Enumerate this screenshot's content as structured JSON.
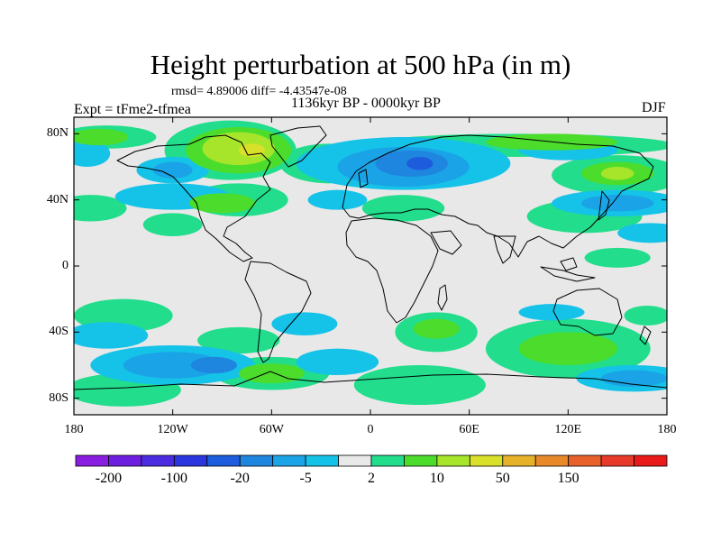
{
  "header": {
    "title": "Height perturbation at 500 hPa (in m)",
    "stats": "rmsd= 4.89006 diff= -4.43547e-08",
    "period": "1136kyr BP - 0000kyr BP",
    "experiment": "Expt = tFme2-tfmea",
    "season": "DJF"
  },
  "chart_data": {
    "type": "heatmap",
    "variable": "Height perturbation at 500 hPa",
    "units": "m",
    "season": "DJF",
    "xlim": [
      -180,
      180
    ],
    "ylim": [
      -90,
      90
    ],
    "lon_ticks": [
      {
        "value": -180,
        "label": "180"
      },
      {
        "value": -120,
        "label": "120W"
      },
      {
        "value": -60,
        "label": "60W"
      },
      {
        "value": 0,
        "label": "0"
      },
      {
        "value": 60,
        "label": "60E"
      },
      {
        "value": 120,
        "label": "120E"
      },
      {
        "value": 180,
        "label": "180"
      }
    ],
    "lat_ticks": [
      {
        "value": 80,
        "label": "80N"
      },
      {
        "value": 40,
        "label": "40N"
      },
      {
        "value": 0,
        "label": "0"
      },
      {
        "value": -40,
        "label": "40S"
      },
      {
        "value": -80,
        "label": "80S"
      }
    ],
    "colorbar": {
      "colors": [
        "#8a1ee0",
        "#6d1fe0",
        "#4b2ce0",
        "#2b36de",
        "#1d5cdc",
        "#1f86e0",
        "#1aa3e6",
        "#15c2e8",
        "#e8e8e8",
        "#22dd8c",
        "#4cdc2c",
        "#a6e52a",
        "#d9e02a",
        "#e6b22a",
        "#e88a2a",
        "#e8602a",
        "#e83a2a",
        "#e81a1a"
      ],
      "labels": [
        "-200",
        "-100",
        "-20",
        "-5",
        "2",
        "10",
        "50",
        "150"
      ]
    },
    "regions": [
      {
        "level": 1,
        "lon": -160,
        "lat": 78,
        "rlon": 30,
        "rlat": 7
      },
      {
        "level": 1,
        "lon": -85,
        "lat": 70,
        "rlon": 40,
        "rlat": 18
      },
      {
        "level": 1,
        "lon": -170,
        "lat": 35,
        "rlon": 22,
        "rlat": 8
      },
      {
        "level": 1,
        "lon": -25,
        "lat": 62,
        "rlon": 30,
        "rlat": 12
      },
      {
        "level": 1,
        "lon": 150,
        "lat": 55,
        "rlon": 40,
        "rlat": 12
      },
      {
        "level": 1,
        "lon": 90,
        "lat": 73,
        "rlon": 95,
        "rlat": 7
      },
      {
        "level": 1,
        "lon": -80,
        "lat": 40,
        "rlon": 30,
        "rlat": 10
      },
      {
        "level": 1,
        "lon": -120,
        "lat": 25,
        "rlon": 18,
        "rlat": 7
      },
      {
        "level": 1,
        "lon": 20,
        "lat": 35,
        "rlon": 25,
        "rlat": 8
      },
      {
        "level": 1,
        "lon": 130,
        "lat": 30,
        "rlon": 35,
        "rlat": 10
      },
      {
        "level": 1,
        "lon": 150,
        "lat": 5,
        "rlon": 20,
        "rlat": 6
      },
      {
        "level": 1,
        "lon": -150,
        "lat": -30,
        "rlon": 30,
        "rlat": 10
      },
      {
        "level": 1,
        "lon": -80,
        "lat": -45,
        "rlon": 25,
        "rlat": 8
      },
      {
        "level": 1,
        "lon": 40,
        "lat": -40,
        "rlon": 25,
        "rlat": 12
      },
      {
        "level": 1,
        "lon": 120,
        "lat": -50,
        "rlon": 50,
        "rlat": 18
      },
      {
        "level": 1,
        "lon": -150,
        "lat": -75,
        "rlon": 35,
        "rlat": 10
      },
      {
        "level": 1,
        "lon": 30,
        "lat": -72,
        "rlon": 40,
        "rlat": 12
      },
      {
        "level": 1,
        "lon": -60,
        "lat": -65,
        "rlon": 35,
        "rlat": 10
      },
      {
        "level": 1,
        "lon": 168,
        "lat": -30,
        "rlon": 14,
        "rlat": 6
      },
      {
        "level": 2,
        "lon": -80,
        "lat": 70,
        "rlon": 32,
        "rlat": 14
      },
      {
        "level": 2,
        "lon": 150,
        "lat": 56,
        "rlon": 22,
        "rlat": 7
      },
      {
        "level": 2,
        "lon": -165,
        "lat": 78,
        "rlon": 18,
        "rlat": 5
      },
      {
        "level": 2,
        "lon": 110,
        "lat": 75,
        "rlon": 40,
        "rlat": 5
      },
      {
        "level": 2,
        "lon": -90,
        "lat": 38,
        "rlon": 20,
        "rlat": 6
      },
      {
        "level": 2,
        "lon": 40,
        "lat": -38,
        "rlon": 14,
        "rlat": 6
      },
      {
        "level": 2,
        "lon": 120,
        "lat": -50,
        "rlon": 30,
        "rlat": 10
      },
      {
        "level": 2,
        "lon": -60,
        "lat": -65,
        "rlon": 20,
        "rlat": 6
      },
      {
        "level": 3,
        "lon": -80,
        "lat": 71,
        "rlon": 22,
        "rlat": 10
      },
      {
        "level": 3,
        "lon": -70,
        "lat": 71,
        "rlon": 12,
        "rlat": 6
      },
      {
        "level": 3,
        "lon": 150,
        "lat": 56,
        "rlon": 10,
        "rlat": 4
      },
      {
        "level": 4,
        "lon": -72,
        "lat": 70,
        "rlon": 8,
        "rlat": 4
      },
      {
        "level": -1,
        "lon": 20,
        "lat": 62,
        "rlon": 65,
        "rlat": 16
      },
      {
        "level": -1,
        "lon": 120,
        "lat": 70,
        "rlon": 30,
        "rlat": 6
      },
      {
        "level": -1,
        "lon": -120,
        "lat": 58,
        "rlon": 22,
        "rlat": 8
      },
      {
        "level": -1,
        "lon": -172,
        "lat": 68,
        "rlon": 14,
        "rlat": 8
      },
      {
        "level": -1,
        "lon": 150,
        "lat": 38,
        "rlon": 40,
        "rlat": 8
      },
      {
        "level": -1,
        "lon": -120,
        "lat": 42,
        "rlon": 35,
        "rlat": 8
      },
      {
        "level": -1,
        "lon": 170,
        "lat": 20,
        "rlon": 20,
        "rlat": 6
      },
      {
        "level": -1,
        "lon": -120,
        "lat": -60,
        "rlon": 50,
        "rlat": 12
      },
      {
        "level": -1,
        "lon": 160,
        "lat": -68,
        "rlon": 35,
        "rlat": 8
      },
      {
        "level": -1,
        "lon": -20,
        "lat": -58,
        "rlon": 25,
        "rlat": 8
      },
      {
        "level": -1,
        "lon": -160,
        "lat": -42,
        "rlon": 25,
        "rlat": 8
      },
      {
        "level": -1,
        "lon": -40,
        "lat": -35,
        "rlon": 20,
        "rlat": 7
      },
      {
        "level": -1,
        "lon": 110,
        "lat": -28,
        "rlon": 20,
        "rlat": 5
      },
      {
        "level": -1,
        "lon": -20,
        "lat": 40,
        "rlon": 18,
        "rlat": 6
      },
      {
        "level": -2,
        "lon": 20,
        "lat": 60,
        "rlon": 40,
        "rlat": 12
      },
      {
        "level": -2,
        "lon": -120,
        "lat": 58,
        "rlon": 12,
        "rlat": 5
      },
      {
        "level": -2,
        "lon": -120,
        "lat": -60,
        "rlon": 30,
        "rlat": 8
      },
      {
        "level": -2,
        "lon": 160,
        "lat": -68,
        "rlon": 20,
        "rlat": 5
      },
      {
        "level": -2,
        "lon": 150,
        "lat": 38,
        "rlon": 22,
        "rlat": 5
      },
      {
        "level": -3,
        "lon": 25,
        "lat": 62,
        "rlon": 22,
        "rlat": 8
      },
      {
        "level": -3,
        "lon": -95,
        "lat": -60,
        "rlon": 14,
        "rlat": 5
      },
      {
        "level": -4,
        "lon": 30,
        "lat": 62,
        "rlon": 8,
        "rlat": 4
      }
    ]
  }
}
